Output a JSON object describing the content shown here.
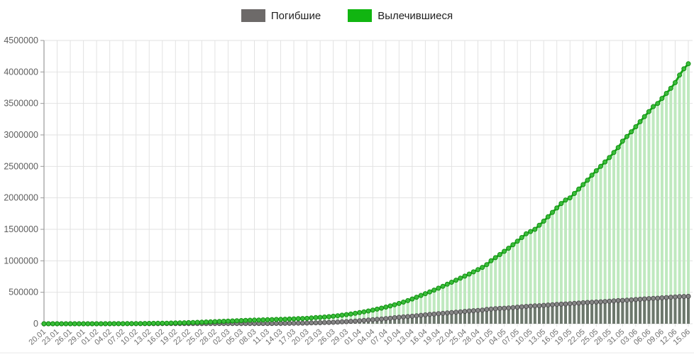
{
  "legend": {
    "items": [
      {
        "label": "Погибшие",
        "color": "#6d6a69"
      },
      {
        "label": "Вылечившиеся",
        "color": "#11b511"
      }
    ]
  },
  "chart_data": {
    "type": "line",
    "style": "cumulative daily lines with circular markers over thin vertical bars",
    "title": "",
    "xlabel": "",
    "ylabel": "",
    "ylim": [
      0,
      4500000
    ],
    "y_ticks": [
      0,
      500000,
      1000000,
      1500000,
      2000000,
      2500000,
      3000000,
      3500000,
      4000000,
      4500000
    ],
    "grid": true,
    "legend_position": "top-center",
    "x_tick_every": 3,
    "x_tick_labels": [
      "20.01",
      "23.01",
      "26.01",
      "29.01",
      "01.02",
      "04.02",
      "07.02",
      "10.02",
      "13.02",
      "16.02",
      "19.02",
      "22.02",
      "25.02",
      "28.02",
      "02.03",
      "05.03",
      "08.03",
      "11.03",
      "14.03",
      "17.03",
      "20.03",
      "23.03",
      "26.03",
      "29.03",
      "01.04",
      "04.04",
      "07.04",
      "10.04",
      "13.04",
      "16.04",
      "19.04",
      "22.04",
      "25.04",
      "28.04",
      "01.05",
      "04.05",
      "07.05",
      "10.05",
      "13.05",
      "16.05",
      "19.05",
      "22.05",
      "25.05",
      "28.05",
      "31.05",
      "03.06",
      "06.06",
      "09.06",
      "12.06",
      "15.06"
    ],
    "series": [
      {
        "name": "Погибшие",
        "line_color": "#6c6c6c",
        "marker_fill": "#858585",
        "marker_stroke": "#4f4f4f",
        "bar_fill": "rgba(80,80,80,0.75)",
        "values": [
          6,
          9,
          17,
          25,
          41,
          56,
          80,
          106,
          132,
          170,
          213,
          259,
          305,
          362,
          426,
          492,
          565,
          638,
          724,
          813,
          910,
          1018,
          1115,
          1261,
          1383,
          1526,
          1669,
          1775,
          1873,
          2009,
          2126,
          2247,
          2360,
          2458,
          2550,
          2629,
          2708,
          2770,
          2814,
          2872,
          2941,
          2996,
          3085,
          3160,
          3254,
          3348,
          3460,
          3558,
          3802,
          3988,
          4262,
          4615,
          4720,
          5404,
          5819,
          6440,
          7126,
          7905,
          8733,
          9867,
          11299,
          12973,
          14632,
          16514,
          18894,
          21282,
          23970,
          26990,
          30451,
          33925,
          37815,
          42107,
          47244,
          52983,
          58787,
          64703,
          69374,
          74565,
          81865,
          88338,
          95506,
          102774,
          108503,
          114091,
          119483,
          125983,
          134177,
          141475,
          147512,
          153822,
          160434,
          165939,
          171810,
          177641,
          184249,
          189757,
          195755,
          202880,
          207973,
          211609,
          217153,
          228197,
          233824,
          238619,
          243813,
          247470,
          251537,
          257239,
          263346,
          269567,
          274898,
          279311,
          283868,
          286330,
          292046,
          297197,
          302418,
          307666,
          311781,
          315185,
          318789,
          323256,
          328172,
          333446,
          338133,
          342119,
          344796,
          348541,
          352910,
          357688,
          362705,
          367166,
          371166,
          374941,
          378954,
          384578,
          389620,
          394825,
          399337,
          402770,
          406540,
          411879,
          416201,
          421361,
          426403,
          430707,
          433067,
          434796
        ]
      },
      {
        "name": "Вылечившиеся",
        "line_color": "#16a816",
        "marker_fill": "#3abd3a",
        "marker_stroke": "#0f8f0f",
        "bar_fill": "#bfe9bf",
        "values": [
          49,
          54,
          63,
          67,
          77,
          95,
          101,
          126,
          143,
          171,
          189,
          243,
          328,
          475,
          633,
          727,
          987,
          1245,
          1545,
          2011,
          2616,
          3244,
          3946,
          4683,
          5150,
          6295,
          7481,
          8672,
          9395,
          10865,
          12583,
          14352,
          16121,
          17930,
          20395,
          22886,
          25227,
          27905,
          30384,
          33277,
          36711,
          39782,
          42716,
          45602,
          48228,
          51170,
          53797,
          55866,
          58358,
          60190,
          62494,
          64404,
          66239,
          68324,
          70251,
          72624,
          75923,
          78248,
          80840,
          83312,
          86032,
          91952,
          97882,
          102000,
          107000,
          113000,
          120000,
          128000,
          136000,
          145000,
          155000,
          166000,
          178000,
          190000,
          203000,
          217000,
          232000,
          248000,
          265000,
          283000,
          302000,
          322000,
          344000,
          368000,
          394000,
          422000,
          450000,
          478000,
          506000,
          535000,
          565000,
          596000,
          628000,
          660000,
          692000,
          724000,
          757000,
          790000,
          824000,
          859000,
          896000,
          940000,
          1000000,
          1050000,
          1100000,
          1150000,
          1200000,
          1255000,
          1310000,
          1370000,
          1430000,
          1465000,
          1500000,
          1565000,
          1630000,
          1700000,
          1770000,
          1840000,
          1910000,
          1965000,
          2000000,
          2070000,
          2140000,
          2210000,
          2280000,
          2360000,
          2430000,
          2500000,
          2570000,
          2640000,
          2720000,
          2800000,
          2900000,
          2975000,
          3050000,
          3130000,
          3210000,
          3290000,
          3370000,
          3450000,
          3500000,
          3580000,
          3660000,
          3740000,
          3830000,
          3950000,
          4050000,
          4130000
        ]
      }
    ],
    "colors": {
      "grid": "#e2e2e2",
      "axis": "#9a9a9a",
      "tick_text": "#6e6e6e",
      "background": "#ffffff"
    }
  }
}
